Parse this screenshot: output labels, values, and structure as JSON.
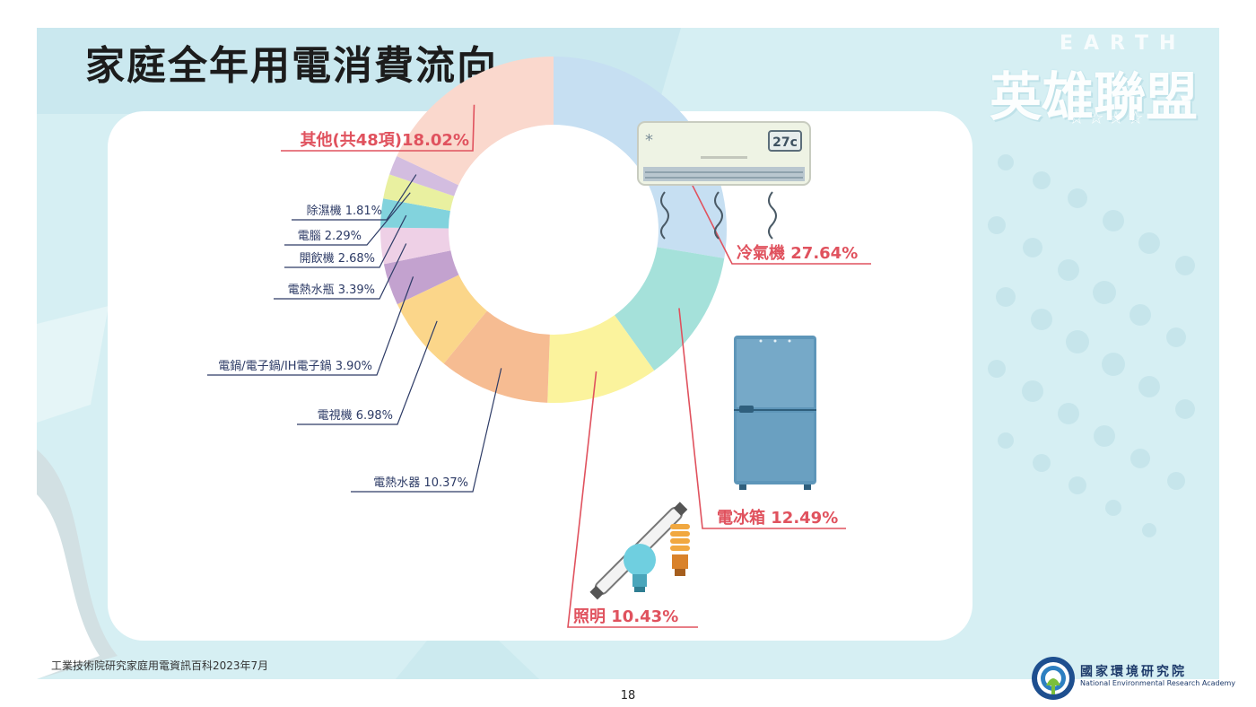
{
  "title": "家庭全年用電消費流向",
  "brand": {
    "top_text": "EARTH",
    "logo_text": "英雄聯盟",
    "stars": "☆☆☆☆"
  },
  "source_note": "工業技術院研究家庭用電資訊百科2023年7月",
  "page_number": "18",
  "organization": {
    "name_zh": "國家環境研究院",
    "name_en": "National Environmental Research Academy"
  },
  "illustrations": {
    "air_conditioner_display": "27c"
  },
  "colors": {
    "label_highlight": "#e0525e",
    "label_default": "#2d3b66",
    "slide_background": "#d6eff3"
  },
  "chart_data": {
    "type": "pie",
    "variant": "donut",
    "start_angle": "12 o'clock, clockwise",
    "title": "",
    "slices": [
      {
        "label": "冷氣機 27.64%",
        "name": "冷氣機",
        "value": 27.64,
        "color": "#c6dff2",
        "highlight": true
      },
      {
        "label": "電冰箱 12.49%",
        "name": "電冰箱",
        "value": 12.49,
        "color": "#a5e1da",
        "highlight": true
      },
      {
        "label": "照明 10.43%",
        "name": "照明",
        "value": 10.43,
        "color": "#fbf39d",
        "highlight": true
      },
      {
        "label": "電熱水器 10.37%",
        "name": "電熱水器",
        "value": 10.37,
        "color": "#f6bc92",
        "highlight": false
      },
      {
        "label": "電視機 6.98%",
        "name": "電視機",
        "value": 6.98,
        "color": "#fbd68a",
        "highlight": false
      },
      {
        "label": "電鍋/電子鍋/IH電子鍋 3.90%",
        "name": "電鍋/電子鍋/IH電子鍋",
        "value": 3.9,
        "color": "#c3a2cf",
        "highlight": false
      },
      {
        "label": "電熱水瓶 3.39%",
        "name": "電熱水瓶",
        "value": 3.39,
        "color": "#eed0e6",
        "highlight": false
      },
      {
        "label": "開飲機 2.68%",
        "name": "開飲機",
        "value": 2.68,
        "color": "#82d3dd",
        "highlight": false
      },
      {
        "label": "電腦 2.29%",
        "name": "電腦",
        "value": 2.29,
        "color": "#e9f0a0",
        "highlight": false
      },
      {
        "label": "除濕機 1.81%",
        "name": "除濕機",
        "value": 1.81,
        "color": "#d3bde0",
        "highlight": false
      },
      {
        "label": "其他(共48項)18.02%",
        "name": "其他(共48項)",
        "value": 18.02,
        "color": "#fad8cd",
        "highlight": true
      }
    ]
  }
}
